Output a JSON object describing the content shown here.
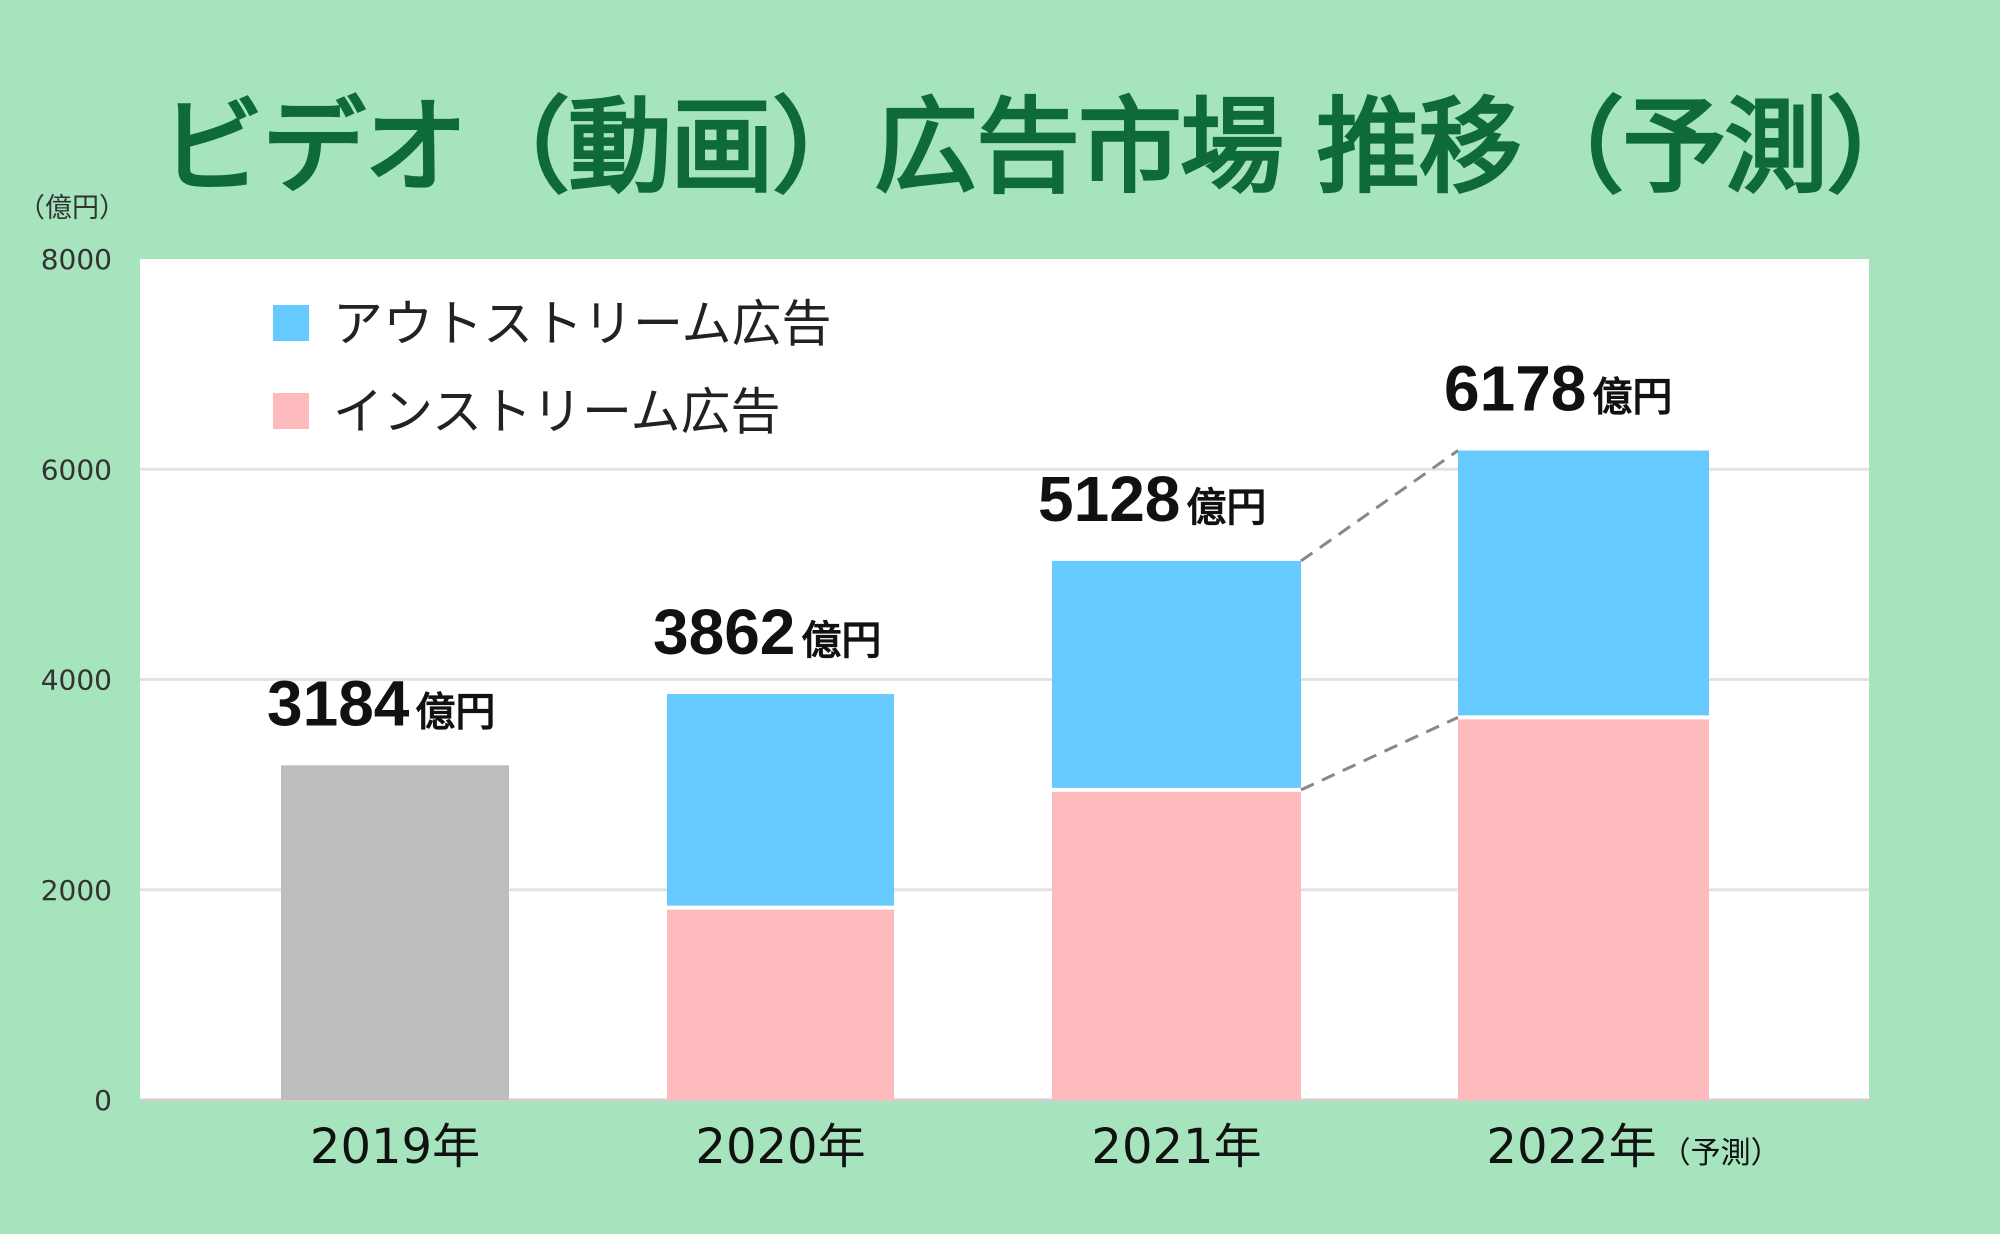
{
  "title": "ビデオ（動画）広告市場 推移（予測）",
  "chart_data": {
    "type": "bar",
    "stacked": true,
    "title": "ビデオ（動画）広告市場 推移（予測）",
    "ylabel": "（億円）",
    "xlabel": "",
    "ylim": [
      0,
      8000
    ],
    "yticks": [
      "0",
      "2000",
      "4000",
      "6000",
      "8000"
    ],
    "grid": true,
    "legend_position": "top-left",
    "categories": [
      "2019年",
      "2020年",
      "2021年",
      "2022年"
    ],
    "category_notes": [
      "",
      "",
      "",
      "（予測）"
    ],
    "totals": [
      3184,
      3862,
      5128,
      6178
    ],
    "total_labels": [
      "3184",
      "3862",
      "5128",
      "6178"
    ],
    "total_unit": "億円",
    "series": [
      {
        "name": "インストリーム広告",
        "color": "#fdbbbd",
        "values": [
          null,
          1830,
          2950,
          3640
        ]
      },
      {
        "name": "アウトストリーム広告",
        "color": "#66caff",
        "values": [
          null,
          2032,
          2178,
          2538
        ]
      },
      {
        "name": "",
        "color": "#bdbdbd",
        "values": [
          3184,
          null,
          null,
          null
        ]
      }
    ],
    "legend": [
      "アウトストリーム広告",
      "インストリーム広告"
    ],
    "connectors": "dashed lines from 2021 to 2022 bar segment tops"
  },
  "colors": {
    "background": "#a6e4bd",
    "title": "#0f6a3a",
    "plot": "#ffffff",
    "grid": "#e3e3e3"
  }
}
